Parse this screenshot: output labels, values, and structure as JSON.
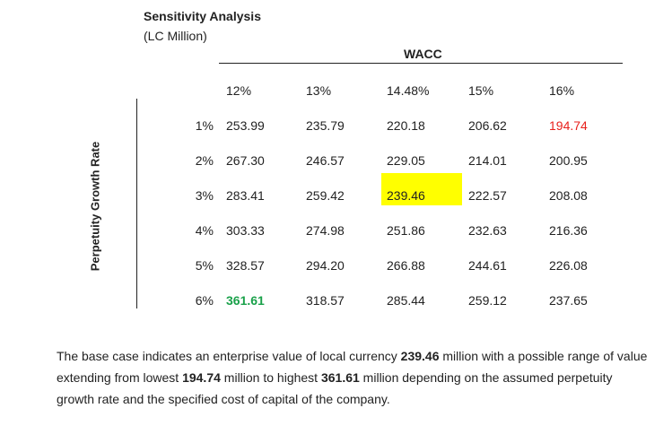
{
  "header": {
    "title": "Sensitivity Analysis",
    "unit": "(LC Million)"
  },
  "table": {
    "column_axis_label": "WACC",
    "row_axis_label": "Perpetuity Growth Rate",
    "columns": [
      "12%",
      "13%",
      "14.48%",
      "15%",
      "16%"
    ],
    "rows": [
      {
        "label": "1%",
        "values": [
          "253.99",
          "235.79",
          "220.18",
          "206.62",
          "194.74"
        ]
      },
      {
        "label": "2%",
        "values": [
          "267.30",
          "246.57",
          "229.05",
          "214.01",
          "200.95"
        ]
      },
      {
        "label": "3%",
        "values": [
          "283.41",
          "259.42",
          "239.46",
          "222.57",
          "208.08"
        ]
      },
      {
        "label": "4%",
        "values": [
          "303.33",
          "274.98",
          "251.86",
          "232.63",
          "216.36"
        ]
      },
      {
        "label": "5%",
        "values": [
          "328.57",
          "294.20",
          "266.88",
          "244.61",
          "226.08"
        ]
      },
      {
        "label": "6%",
        "values": [
          "361.61",
          "318.57",
          "285.44",
          "259.12",
          "237.65"
        ]
      }
    ],
    "colors": {
      "highlight_bg": "#ffff00",
      "low_value": "#e8211c",
      "high_value": "#1aa14a"
    }
  },
  "summary": {
    "t1": "The base case indicates an enterprise value of local currency ",
    "b1": "239.46",
    "t2": " million with a possible range of value extending from lowest ",
    "b2": "194.74",
    "t3": " million to highest ",
    "b3": "361.61",
    "t4": " million depending on the assumed perpetuity growth rate and the specified cost of capital of the company."
  }
}
